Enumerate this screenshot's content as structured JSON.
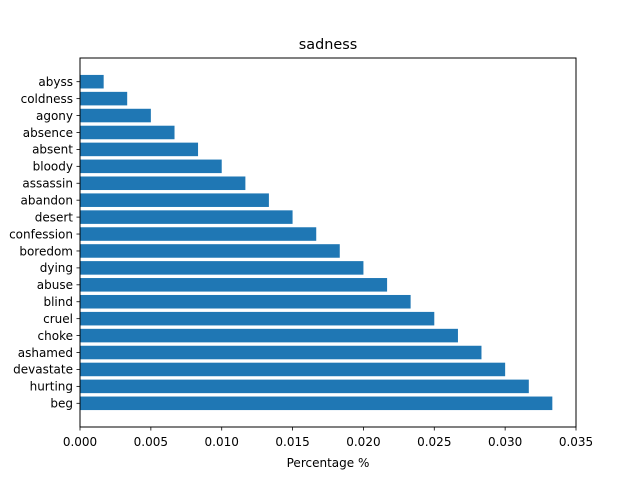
{
  "chart_data": {
    "type": "bar",
    "orientation": "horizontal",
    "title": "sadness",
    "xlabel": "Percentage %",
    "ylabel": "",
    "xlim": [
      0,
      0.035
    ],
    "xticks": [
      "0.000",
      "0.005",
      "0.010",
      "0.015",
      "0.020",
      "0.025",
      "0.030",
      "0.035"
    ],
    "categories": [
      "beg",
      "hurting",
      "devastate",
      "ashamed",
      "choke",
      "cruel",
      "blind",
      "abuse",
      "dying",
      "boredom",
      "confession",
      "desert",
      "abandon",
      "assassin",
      "bloody",
      "absent",
      "absence",
      "agony",
      "coldness",
      "abyss"
    ],
    "values": [
      0.03333,
      0.03167,
      0.03,
      0.02833,
      0.02667,
      0.025,
      0.02333,
      0.02167,
      0.02,
      0.01833,
      0.01667,
      0.015,
      0.01333,
      0.01167,
      0.01,
      0.00833,
      0.00667,
      0.005,
      0.00333,
      0.00167
    ],
    "bar_color": "#1f77b4",
    "grid": false,
    "legend": "none"
  }
}
